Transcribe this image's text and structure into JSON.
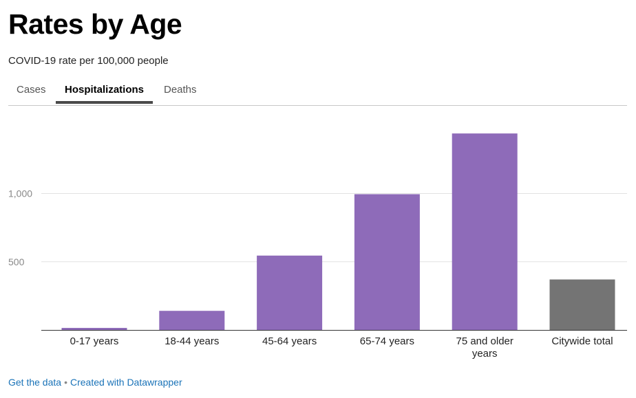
{
  "header": {
    "title": "Rates by Age",
    "subtitle": "COVID-19 rate per 100,000 people"
  },
  "tabs": [
    {
      "label": "Cases",
      "active": false
    },
    {
      "label": "Hospitalizations",
      "active": true
    },
    {
      "label": "Deaths",
      "active": false
    }
  ],
  "chart_data": {
    "type": "bar",
    "categories": [
      "0-17 years",
      "18-44 years",
      "45-64 years",
      "65-74 years",
      "75 and older years",
      "Citywide total"
    ],
    "values": [
      15,
      140,
      545,
      995,
      1440,
      370
    ],
    "colors": [
      "#8e6bb9",
      "#8e6bb9",
      "#8e6bb9",
      "#8e6bb9",
      "#8e6bb9",
      "#747474"
    ],
    "yticks": [
      500,
      1000
    ],
    "ytick_labels": [
      "500",
      "1,000"
    ],
    "ylim": [
      0,
      1550
    ],
    "grid": true,
    "title": "",
    "xlabel": "",
    "ylabel": ""
  },
  "footer": {
    "get_data": "Get the data",
    "separator": "•",
    "created_with": "Created with Datawrapper"
  }
}
